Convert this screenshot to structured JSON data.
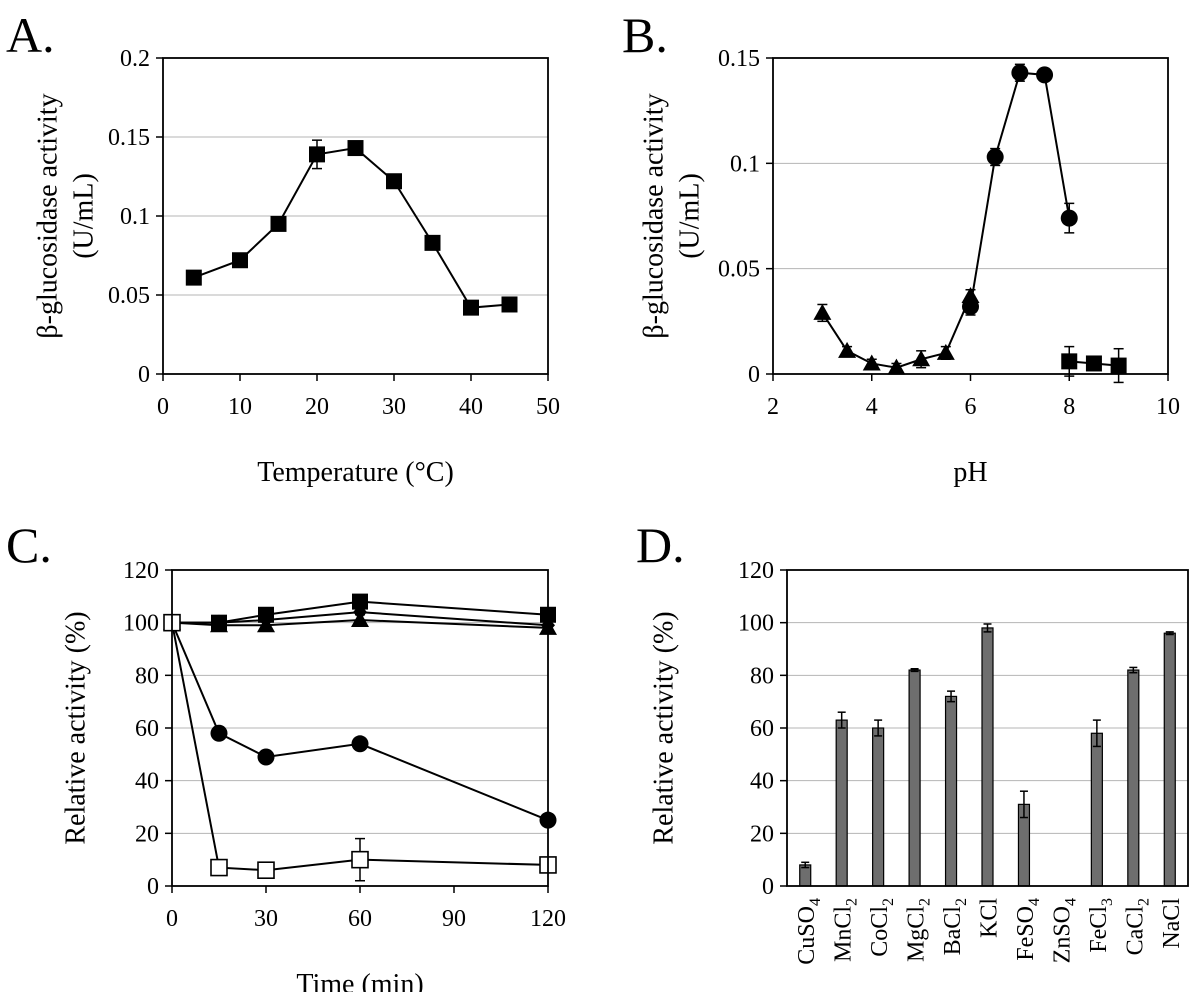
{
  "chart_data": [
    {
      "id": "A",
      "panel_label": "A.",
      "type": "line",
      "xlabel": "Temperature (°C)",
      "ylabel_lines": [
        "β-glucosidase activity",
        "(U/mL)"
      ],
      "xlim": [
        0,
        50
      ],
      "ylim": [
        0,
        0.2
      ],
      "xticks": [
        0,
        10,
        20,
        30,
        40,
        50
      ],
      "yticks": [
        0,
        0.05,
        0.1,
        0.15,
        0.2
      ],
      "ytick_labels": [
        "0",
        "0.05",
        "0.1",
        "0.15",
        "0.2"
      ],
      "grid": "horizontal",
      "series": [
        {
          "marker": "square-filled",
          "connect": true,
          "x": [
            4,
            10,
            15,
            20,
            25,
            30,
            35,
            40,
            45
          ],
          "y": [
            0.061,
            0.072,
            0.095,
            0.139,
            0.143,
            0.122,
            0.083,
            0.042,
            0.044
          ],
          "err": [
            0,
            0,
            0,
            0.009,
            0.004,
            0,
            0,
            0,
            0
          ]
        }
      ]
    },
    {
      "id": "B",
      "panel_label": "B.",
      "type": "line",
      "xlabel": "pH",
      "ylabel_lines": [
        "β-glucosidase activity",
        "(U/mL)"
      ],
      "xlim": [
        2,
        10
      ],
      "ylim": [
        0,
        0.15
      ],
      "xticks": [
        2,
        4,
        6,
        8,
        10
      ],
      "yticks": [
        0,
        0.05,
        0.1,
        0.15
      ],
      "ytick_labels": [
        "0",
        "0.05",
        "0.1",
        "0.15"
      ],
      "grid": "horizontal",
      "series": [
        {
          "marker": "triangle-filled",
          "connect": true,
          "x": [
            3,
            3.5,
            4,
            4.5,
            5,
            5.5,
            6
          ],
          "y": [
            0.029,
            0.011,
            0.005,
            0.003,
            0.007,
            0.01,
            0.037
          ],
          "err": [
            0.004,
            0.002,
            0.002,
            0.002,
            0.004,
            0.003,
            0.003
          ]
        },
        {
          "marker": "circle-filled",
          "connect": true,
          "x": [
            6,
            6.5,
            7,
            7.5,
            8
          ],
          "y": [
            0.032,
            0.103,
            0.143,
            0.142,
            0.074
          ],
          "err": [
            0.004,
            0.004,
            0.004,
            0.002,
            0.007
          ]
        },
        {
          "marker": "square-filled",
          "connect": true,
          "x": [
            8,
            8.5,
            9
          ],
          "y": [
            0.006,
            0.005,
            0.004
          ],
          "err": [
            0.007,
            0.001,
            0.008
          ]
        }
      ]
    },
    {
      "id": "C",
      "panel_label": "C.",
      "type": "line",
      "xlabel": "Time (min)",
      "ylabel_lines": [
        "Relative activity (%)"
      ],
      "xlim": [
        0,
        120
      ],
      "ylim": [
        0,
        120
      ],
      "xticks": [
        0,
        30,
        60,
        90,
        120
      ],
      "yticks": [
        0,
        20,
        40,
        60,
        80,
        100,
        120
      ],
      "ytick_labels": [
        "0",
        "20",
        "40",
        "60",
        "80",
        "100",
        "120"
      ],
      "grid": "horizontal",
      "series": [
        {
          "marker": "square-filled",
          "connect": true,
          "x": [
            0,
            15,
            30,
            60,
            120
          ],
          "y": [
            100,
            100,
            103,
            108,
            103
          ],
          "err": [
            0,
            0,
            0,
            1,
            0
          ]
        },
        {
          "marker": "triangle-filled",
          "connect": true,
          "x": [
            0,
            15,
            30,
            60,
            120
          ],
          "y": [
            100,
            99,
            99,
            101,
            98
          ],
          "err": [
            0,
            0,
            2,
            2,
            1
          ]
        },
        {
          "marker": "diamond-filled",
          "connect": true,
          "x": [
            0,
            15,
            30,
            60,
            120
          ],
          "y": [
            100,
            100,
            101,
            104,
            99
          ],
          "err": [
            0,
            0,
            0,
            0,
            0
          ]
        },
        {
          "marker": "circle-filled",
          "connect": true,
          "x": [
            0,
            15,
            30,
            60,
            120
          ],
          "y": [
            100,
            58,
            49,
            54,
            25
          ],
          "err": [
            0,
            0,
            0,
            0,
            0
          ]
        },
        {
          "marker": "square-open",
          "connect": true,
          "x": [
            0,
            15,
            30,
            60,
            120
          ],
          "y": [
            100,
            7,
            6,
            10,
            8
          ],
          "err": [
            0,
            0,
            0,
            8,
            0
          ]
        }
      ]
    },
    {
      "id": "D",
      "panel_label": "D.",
      "type": "bar",
      "ylabel_lines": [
        "Relative activity (%)"
      ],
      "ylim": [
        0,
        120
      ],
      "yticks": [
        0,
        20,
        40,
        60,
        80,
        100,
        120
      ],
      "ytick_labels": [
        "0",
        "20",
        "40",
        "60",
        "80",
        "100",
        "120"
      ],
      "grid": "horizontal",
      "categories": [
        {
          "base": "CuSO",
          "sub": "4"
        },
        {
          "base": "MnCl",
          "sub": "2"
        },
        {
          "base": "CoCl",
          "sub": "2"
        },
        {
          "base": "MgCl",
          "sub": "2"
        },
        {
          "base": "BaCl",
          "sub": "2"
        },
        {
          "base": "KCl",
          "sub": ""
        },
        {
          "base": "FeSO",
          "sub": "4"
        },
        {
          "base": "ZnSO",
          "sub": "4"
        },
        {
          "base": "FeCl",
          "sub": "3"
        },
        {
          "base": "CaCl",
          "sub": "2"
        },
        {
          "base": "NaCl",
          "sub": ""
        }
      ],
      "values": [
        8,
        63,
        60,
        82,
        72,
        98,
        31,
        0,
        58,
        82,
        96
      ],
      "err": [
        1,
        3,
        3,
        0.5,
        2,
        1.5,
        5,
        0,
        5,
        1,
        0.5
      ]
    }
  ]
}
